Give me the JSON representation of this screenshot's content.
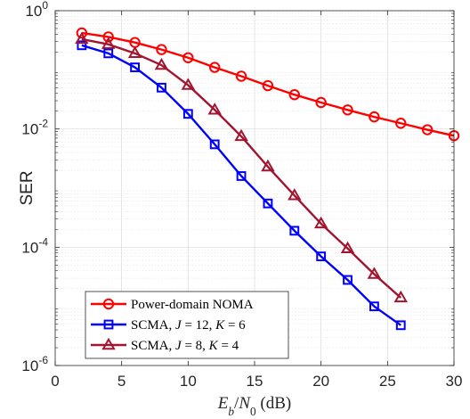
{
  "chart_data": {
    "type": "line",
    "title": "",
    "xlabel": {
      "parts": [
        {
          "text": "E",
          "italic": true
        },
        {
          "text": "b",
          "italic": true,
          "sub": true
        },
        {
          "text": "/",
          "italic": false
        },
        {
          "text": "N",
          "italic": true
        },
        {
          "text": "0",
          "italic": false,
          "sub": true
        },
        {
          "text": " (dB)",
          "italic": false
        }
      ]
    },
    "ylabel": "SER",
    "x_scale": "linear",
    "y_scale": "log",
    "xlim": [
      0,
      30
    ],
    "ylim": [
      1e-06,
      1
    ],
    "x_ticks": [
      0,
      5,
      10,
      15,
      20,
      25,
      30
    ],
    "x_tick_labels": [
      "0",
      "5",
      "10",
      "15",
      "20",
      "25",
      "30"
    ],
    "y_ticks": [
      1e-06,
      0.0001,
      0.01,
      1
    ],
    "y_tick_labels": [
      {
        "base": "10",
        "exp": "-6"
      },
      {
        "base": "10",
        "exp": "-4"
      },
      {
        "base": "10",
        "exp": "-2"
      },
      {
        "base": "10",
        "exp": "0"
      }
    ],
    "grid": true,
    "minor_grid": true,
    "legend_position": "bottom-left",
    "series": [
      {
        "name": "Power-domain NOMA",
        "legend_parts": [
          {
            "text": "Power-domain NOMA",
            "italic": false
          }
        ],
        "color": "#ff0000",
        "marker": "circle",
        "x": [
          2,
          4,
          6,
          8,
          10,
          12,
          14,
          16,
          18,
          20,
          22,
          24,
          26,
          28,
          30
        ],
        "y": [
          0.42,
          0.36,
          0.29,
          0.22,
          0.16,
          0.11,
          0.078,
          0.054,
          0.038,
          0.028,
          0.021,
          0.016,
          0.0125,
          0.0097,
          0.0077
        ]
      },
      {
        "name": "SCMA, J = 12, K = 6",
        "legend_parts": [
          {
            "text": "SCMA, ",
            "italic": false
          },
          {
            "text": "J",
            "italic": true
          },
          {
            "text": " = 12, ",
            "italic": false
          },
          {
            "text": "K",
            "italic": true
          },
          {
            "text": " = 6",
            "italic": false
          }
        ],
        "color": "#0000ff",
        "marker": "square",
        "x": [
          2,
          4,
          6,
          8,
          10,
          12,
          14,
          16,
          18,
          20,
          22,
          24,
          26
        ],
        "y": [
          0.26,
          0.19,
          0.11,
          0.05,
          0.018,
          0.0055,
          0.0016,
          0.00055,
          0.00019,
          7e-05,
          2.8e-05,
          1e-05,
          4.8e-06
        ]
      },
      {
        "name": "SCMA, J = 8, K = 4",
        "legend_parts": [
          {
            "text": "SCMA, ",
            "italic": false
          },
          {
            "text": "J",
            "italic": true
          },
          {
            "text": " = 8, ",
            "italic": false
          },
          {
            "text": "K",
            "italic": true
          },
          {
            "text": " = 4",
            "italic": false
          }
        ],
        "color": "#a2142f",
        "marker": "triangle",
        "x": [
          2,
          4,
          6,
          8,
          10,
          12,
          14,
          16,
          18,
          20,
          22,
          24,
          26
        ],
        "y": [
          0.33,
          0.27,
          0.19,
          0.12,
          0.055,
          0.021,
          0.0075,
          0.0023,
          0.00075,
          0.00025,
          9.5e-05,
          3.5e-05,
          1.4e-05
        ]
      }
    ]
  }
}
